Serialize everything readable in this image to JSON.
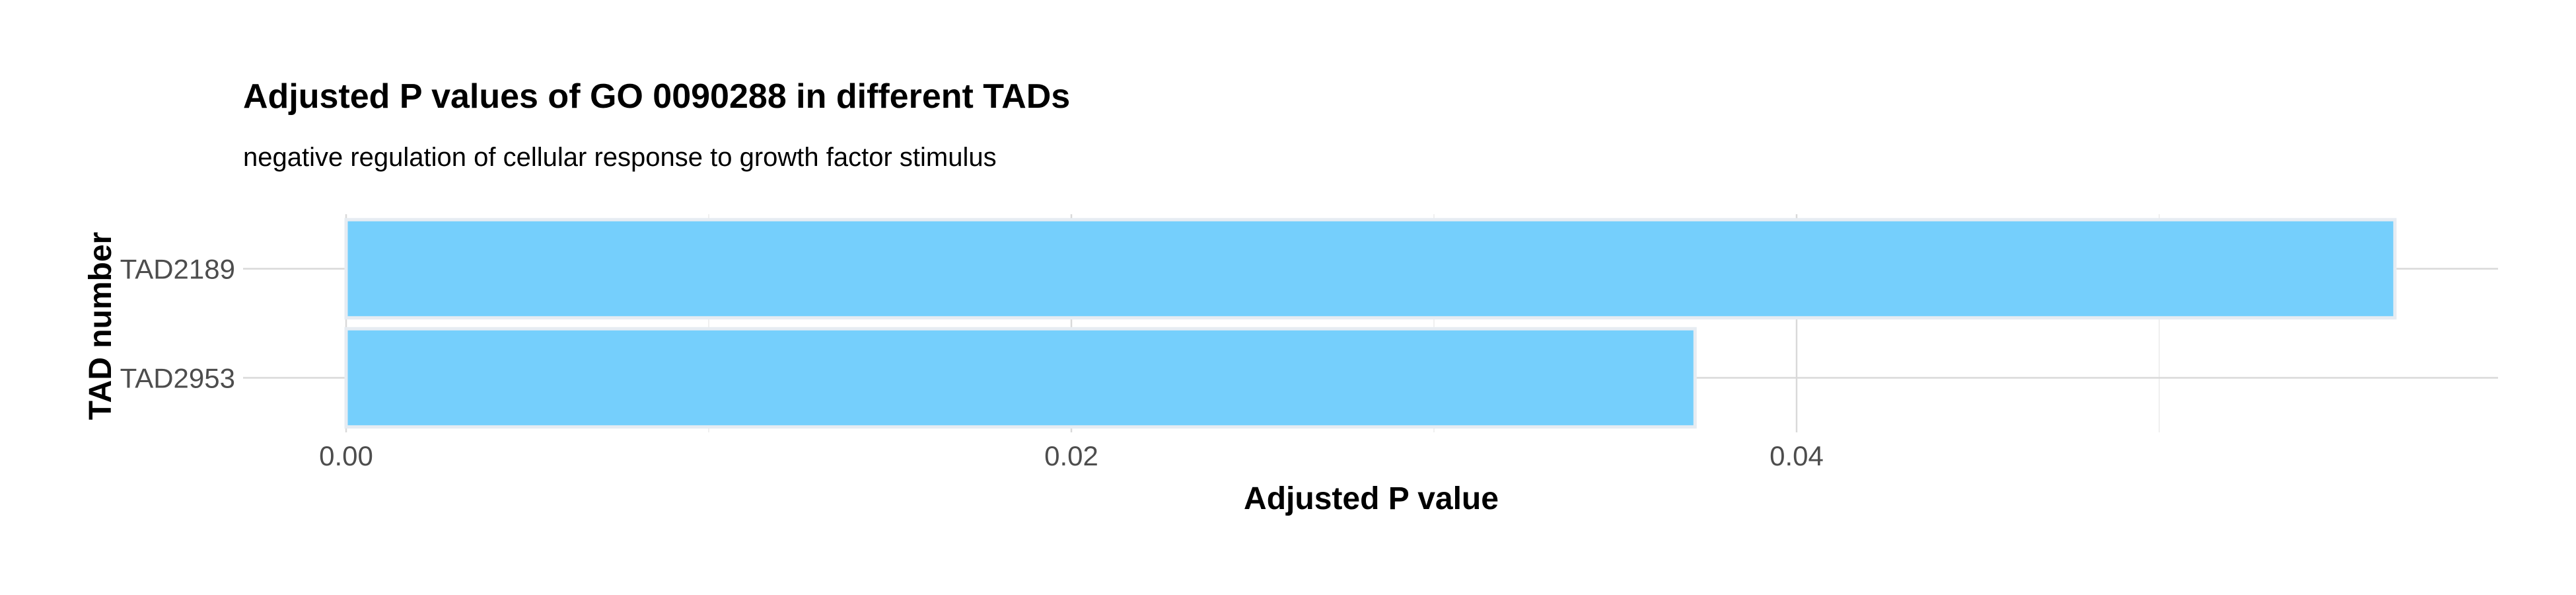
{
  "chart_data": {
    "type": "bar",
    "orientation": "horizontal",
    "title": "Adjusted P values of GO 0090288 in different TADs",
    "subtitle": "negative regulation of cellular response to growth factor stimulus",
    "xlabel": "Adjusted P value",
    "ylabel": "TAD number",
    "categories": [
      "TAD2189",
      "TAD2953"
    ],
    "values": [
      0.0565,
      0.0372
    ],
    "xlim": [
      0,
      0.0595
    ],
    "x_ticks": [
      0.0,
      0.02,
      0.04
    ],
    "x_tick_labels": [
      "0.00",
      "0.02",
      "0.04"
    ],
    "grid": true,
    "legend": "none",
    "colors": {
      "bar_fill": "#75CFFC",
      "bar_outline": "#E6ECF2"
    }
  }
}
